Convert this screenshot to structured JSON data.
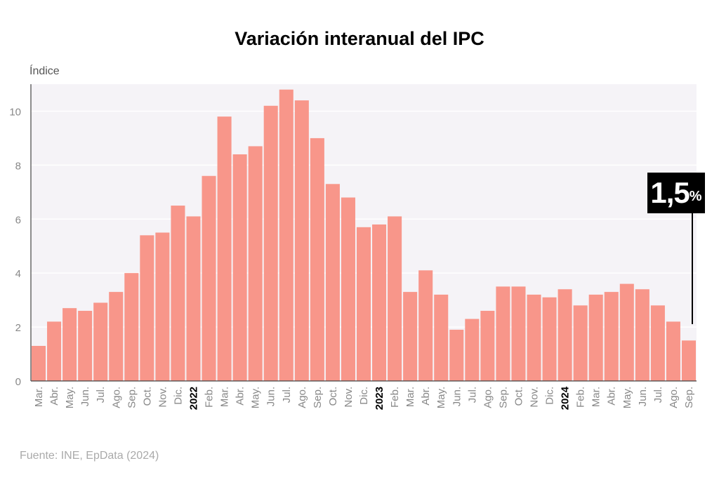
{
  "chart_data": {
    "type": "bar",
    "title": "Variación interanual del IPC",
    "ylabel": "Índice",
    "xlabel": "",
    "ylim": [
      0,
      11
    ],
    "yticks": [
      0,
      2,
      4,
      6,
      8,
      10
    ],
    "grid": true,
    "bar_color": "#f8968a",
    "categories": [
      "Mar.",
      "Abr.",
      "May.",
      "Jun.",
      "Jul.",
      "Ago.",
      "Sep.",
      "Oct.",
      "Nov.",
      "Dic.",
      "2022",
      "Feb.",
      "Mar.",
      "Abr.",
      "May.",
      "Jun.",
      "Jul.",
      "Ago.",
      "Sep.",
      "Oct.",
      "Nov.",
      "Dic.",
      "2023",
      "Feb.",
      "Mar.",
      "Abr.",
      "May.",
      "Jun.",
      "Jul.",
      "Ago.",
      "Sep.",
      "Oct.",
      "Nov.",
      "Dic.",
      "2024",
      "Feb.",
      "Mar.",
      "Abr.",
      "May.",
      "Jun.",
      "Jul.",
      "Ago.",
      "Sep."
    ],
    "year_labels": [
      "2022",
      "2023",
      "2024"
    ],
    "values": [
      1.3,
      2.2,
      2.7,
      2.6,
      2.9,
      3.3,
      4.0,
      5.4,
      5.5,
      6.5,
      6.1,
      7.6,
      9.8,
      8.4,
      8.7,
      10.2,
      10.8,
      10.4,
      9.0,
      7.3,
      6.8,
      5.7,
      5.8,
      6.1,
      3.3,
      4.1,
      3.2,
      1.9,
      2.3,
      2.6,
      3.5,
      3.5,
      3.2,
      3.1,
      3.4,
      2.8,
      3.2,
      3.3,
      3.6,
      3.4,
      2.8,
      2.2,
      1.5
    ],
    "callout": {
      "value": "1,5",
      "unit": "%"
    }
  },
  "source": "Fuente: INE, EpData (2024)"
}
